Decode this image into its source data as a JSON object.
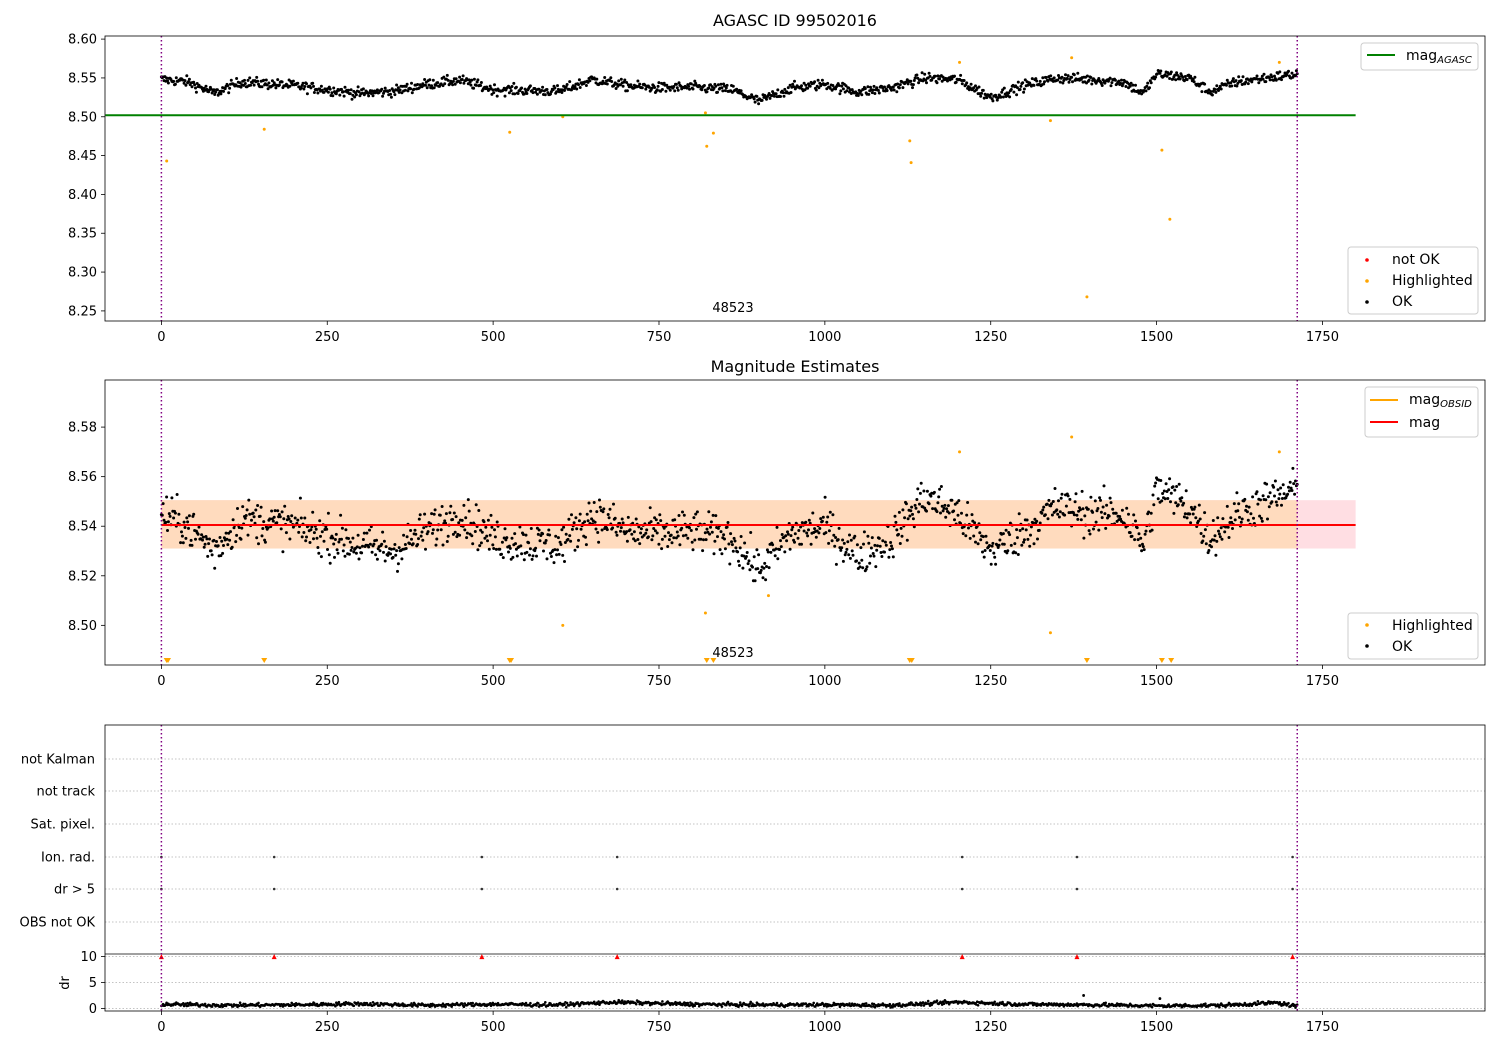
{
  "figure": {
    "panels": {
      "agasc": {
        "title": "AGASC ID 99502016",
        "obsid_label": "48523",
        "legend_line": {
          "label": "mag",
          "sub": "AGASC",
          "color": "#008000"
        },
        "legend_points": [
          {
            "label": "not OK",
            "color": "#ff0000"
          },
          {
            "label": "Highlighted",
            "color": "#ffa500"
          },
          {
            "label": "OK",
            "color": "#000000"
          }
        ]
      },
      "estimates": {
        "title": "Magnitude Estimates",
        "obsid_label": "48523",
        "legend_lines": [
          {
            "label": "mag",
            "sub": "OBSID",
            "color": "#ffa500"
          },
          {
            "label": "mag",
            "sub": "",
            "color": "#ff0000"
          }
        ],
        "legend_points": [
          {
            "label": "Highlighted",
            "color": "#ffa500"
          },
          {
            "label": "OK",
            "color": "#000000"
          }
        ]
      },
      "flags": {
        "ylabel_dr": "dr"
      }
    },
    "colors": {
      "ok": "#000000",
      "highlighted": "#ffa500",
      "not_ok": "#ff0000",
      "agasc_line": "#008000",
      "mean_line": "#ff0000",
      "band_outer": "#ffb6c1",
      "band_inner": "#ffdab9",
      "obs_boundary": "#800080"
    }
  },
  "chart_data": [
    {
      "type": "scatter",
      "title": "AGASC ID 99502016",
      "xlim": [
        -85,
        1995
      ],
      "ylim": [
        8.237,
        8.604
      ],
      "xticks": [
        0,
        250,
        500,
        750,
        1000,
        1250,
        1500,
        1750
      ],
      "yticks": [
        8.25,
        8.3,
        8.35,
        8.4,
        8.45,
        8.5,
        8.55,
        8.6
      ],
      "ytick_labels": [
        "8.25",
        "8.30",
        "8.35",
        "8.40",
        "8.45",
        "8.50",
        "8.55",
        "8.60"
      ],
      "grid": false,
      "legend_placement": "top-right (line), bottom-right (points)",
      "hlines": [
        {
          "name": "mag_AGASC",
          "y": 8.502,
          "x_range": [
            -85,
            1800
          ]
        }
      ],
      "vlines": [
        0,
        1712
      ],
      "ok_series": {
        "x_range": [
          0,
          1712
        ],
        "count": 1300,
        "trend": [
          [
            0,
            8.548
          ],
          [
            40,
            8.545
          ],
          [
            80,
            8.53
          ],
          [
            120,
            8.545
          ],
          [
            200,
            8.54
          ],
          [
            300,
            8.53
          ],
          [
            350,
            8.533
          ],
          [
            400,
            8.542
          ],
          [
            450,
            8.547
          ],
          [
            500,
            8.535
          ],
          [
            600,
            8.533
          ],
          [
            650,
            8.548
          ],
          [
            700,
            8.54
          ],
          [
            750,
            8.537
          ],
          [
            800,
            8.538
          ],
          [
            860,
            8.535
          ],
          [
            900,
            8.52
          ],
          [
            950,
            8.537
          ],
          [
            1000,
            8.542
          ],
          [
            1050,
            8.532
          ],
          [
            1100,
            8.537
          ],
          [
            1150,
            8.55
          ],
          [
            1200,
            8.548
          ],
          [
            1250,
            8.525
          ],
          [
            1300,
            8.54
          ],
          [
            1350,
            8.55
          ],
          [
            1400,
            8.548
          ],
          [
            1450,
            8.545
          ],
          [
            1480,
            8.53
          ],
          [
            1500,
            8.555
          ],
          [
            1550,
            8.55
          ],
          [
            1580,
            8.532
          ],
          [
            1620,
            8.545
          ],
          [
            1712,
            8.555
          ]
        ],
        "noise": 0.006
      },
      "highlighted": [
        [
          8,
          8.443
        ],
        [
          155,
          8.484
        ],
        [
          525,
          8.48
        ],
        [
          605,
          8.5
        ],
        [
          820,
          8.505
        ],
        [
          822,
          8.462
        ],
        [
          832,
          8.479
        ],
        [
          1128,
          8.469
        ],
        [
          1130,
          8.441
        ],
        [
          1203,
          8.57
        ],
        [
          1340,
          8.495
        ],
        [
          1372,
          8.576
        ],
        [
          1395,
          8.268
        ],
        [
          1508,
          8.457
        ],
        [
          1520,
          8.368
        ],
        [
          1685,
          8.57
        ]
      ],
      "annotation": {
        "text": "48523",
        "x": 855,
        "y": 8.25
      }
    },
    {
      "type": "scatter",
      "title": "Magnitude Estimates",
      "xlim": [
        -85,
        1995
      ],
      "ylim": [
        8.484,
        8.599
      ],
      "xticks": [
        0,
        250,
        500,
        750,
        1000,
        1250,
        1500,
        1750
      ],
      "yticks": [
        8.5,
        8.52,
        8.54,
        8.56,
        8.58
      ],
      "ytick_labels": [
        "8.50",
        "8.52",
        "8.54",
        "8.56",
        "8.58"
      ],
      "grid": false,
      "legend_placement": "top-right (lines), bottom-right (points)",
      "mean": 8.5405,
      "band_outer": [
        8.531,
        8.5505
      ],
      "band_inner": [
        8.531,
        8.5505
      ],
      "vlines": [
        0,
        1712
      ],
      "ok_series": {
        "x_range": [
          0,
          1712
        ],
        "count": 1300,
        "trend": [
          [
            0,
            8.545
          ],
          [
            40,
            8.54
          ],
          [
            80,
            8.53
          ],
          [
            120,
            8.543
          ],
          [
            200,
            8.54
          ],
          [
            300,
            8.532
          ],
          [
            350,
            8.53
          ],
          [
            400,
            8.538
          ],
          [
            450,
            8.545
          ],
          [
            500,
            8.535
          ],
          [
            600,
            8.532
          ],
          [
            650,
            8.545
          ],
          [
            700,
            8.538
          ],
          [
            750,
            8.537
          ],
          [
            800,
            8.538
          ],
          [
            860,
            8.535
          ],
          [
            900,
            8.522
          ],
          [
            950,
            8.537
          ],
          [
            1000,
            8.54
          ],
          [
            1050,
            8.528
          ],
          [
            1100,
            8.535
          ],
          [
            1150,
            8.552
          ],
          [
            1200,
            8.545
          ],
          [
            1250,
            8.53
          ],
          [
            1300,
            8.538
          ],
          [
            1350,
            8.548
          ],
          [
            1400,
            8.545
          ],
          [
            1450,
            8.545
          ],
          [
            1480,
            8.532
          ],
          [
            1500,
            8.555
          ],
          [
            1550,
            8.548
          ],
          [
            1580,
            8.535
          ],
          [
            1620,
            8.545
          ],
          [
            1712,
            8.555
          ]
        ],
        "noise": 0.0075
      },
      "highlighted": [
        [
          605,
          8.5
        ],
        [
          820,
          8.505
        ],
        [
          915,
          8.512
        ],
        [
          1203,
          8.57
        ],
        [
          1340,
          8.497
        ],
        [
          1372,
          8.576
        ],
        [
          1685,
          8.57
        ]
      ],
      "below_range_markers": [
        8,
        10,
        155,
        525,
        527,
        822,
        832,
        1128,
        1131,
        1395,
        1508,
        1522
      ],
      "annotation": {
        "text": "48523",
        "x": 855,
        "y": 8.4865
      }
    },
    {
      "type": "scatter",
      "title": "",
      "xlim": [
        -85,
        1995
      ],
      "xticks": [
        0,
        250,
        500,
        750,
        1000,
        1250,
        1500,
        1750
      ],
      "categories": [
        "not Kalman",
        "not track",
        "Sat. pixel.",
        "Ion. rad.",
        "dr > 5",
        "OBS not OK"
      ],
      "flag_events": {
        "Ion. rad.": [
          0,
          170,
          483,
          687,
          1207,
          1380,
          1705
        ],
        "dr > 5": [
          0,
          170,
          483,
          687,
          1207,
          1380,
          1705
        ]
      },
      "dr": {
        "ylabel": "dr",
        "ylim": [
          -0.5,
          10.5
        ],
        "yticks": [
          0,
          5,
          10
        ],
        "ytick_labels": [
          "0",
          "5",
          "10"
        ],
        "ok_trend": [
          [
            0,
            0.8
          ],
          [
            100,
            0.6
          ],
          [
            200,
            0.7
          ],
          [
            300,
            0.9
          ],
          [
            400,
            0.6
          ],
          [
            500,
            0.8
          ],
          [
            600,
            0.7
          ],
          [
            680,
            1.2
          ],
          [
            800,
            0.8
          ],
          [
            900,
            0.7
          ],
          [
            1000,
            0.7
          ],
          [
            1100,
            0.6
          ],
          [
            1200,
            1.2
          ],
          [
            1300,
            0.8
          ],
          [
            1400,
            0.7
          ],
          [
            1500,
            0.5
          ],
          [
            1600,
            0.6
          ],
          [
            1680,
            1.1
          ],
          [
            1712,
            0.4
          ]
        ],
        "clipped_markers": [
          0,
          170,
          483,
          687,
          1207,
          1380,
          1705
        ],
        "outliers": [
          [
            1390,
            2.5
          ],
          [
            1505,
            1.9
          ],
          [
            1210,
            1.4
          ]
        ]
      },
      "vlines": [
        0,
        1712
      ]
    }
  ]
}
